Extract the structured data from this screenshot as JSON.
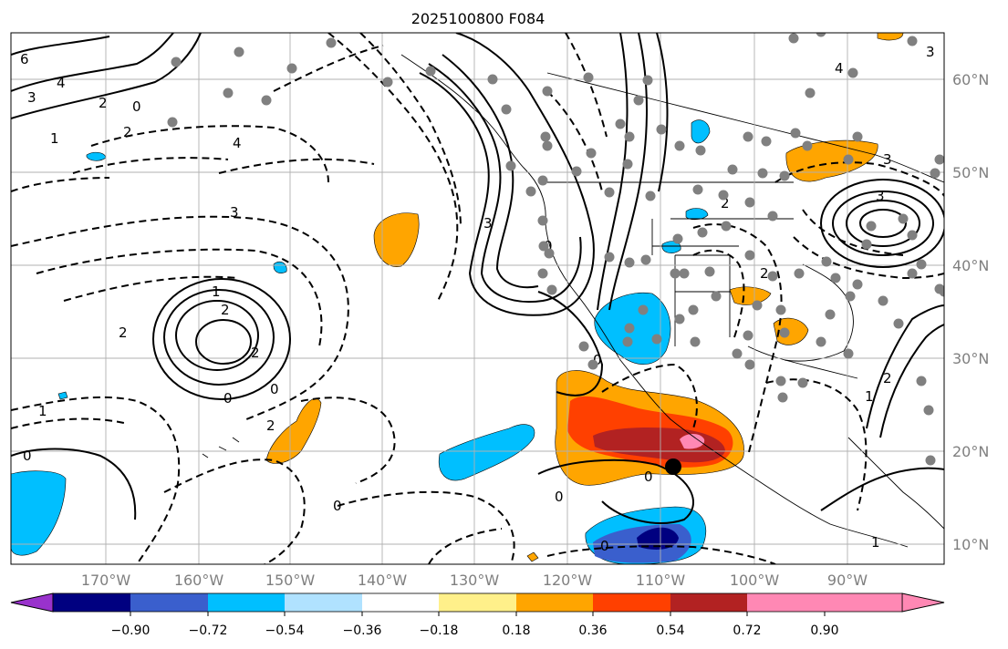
{
  "title": "2025100800 F084",
  "lat_labels": [
    "60°N",
    "50°N",
    "40°N",
    "30°N",
    "20°N",
    "10°N"
  ],
  "lon_labels": [
    "170°W",
    "160°W",
    "150°W",
    "140°W",
    "130°W",
    "120°W",
    "110°W",
    "100°W",
    "90°W"
  ],
  "colorbar": {
    "ticks": [
      "−0.90",
      "−0.72",
      "−0.54",
      "−0.36",
      "−0.18",
      "0.18",
      "0.36",
      "0.54",
      "0.72",
      "0.90"
    ],
    "colors": [
      "#9932cc",
      "#000080",
      "#3a5fcd",
      "#00bfff",
      "#b0e2ff",
      "#ffffff",
      "#fff08a",
      "#ffa500",
      "#ff4000",
      "#b22222",
      "#ff88b4"
    ]
  },
  "contour_labels": [
    "6",
    "4",
    "3",
    "2",
    "0",
    "1",
    "2",
    "4",
    "3",
    "2",
    "3",
    "1",
    "2",
    "2",
    "0",
    "0",
    "1",
    "2",
    "0",
    "0",
    "3",
    "4",
    "2",
    "2",
    "3",
    "3",
    "0",
    "0",
    "0",
    "0",
    "0",
    "2",
    "1",
    "1"
  ],
  "marker_colors": {
    "station": "#808080",
    "center": "#000000"
  }
}
